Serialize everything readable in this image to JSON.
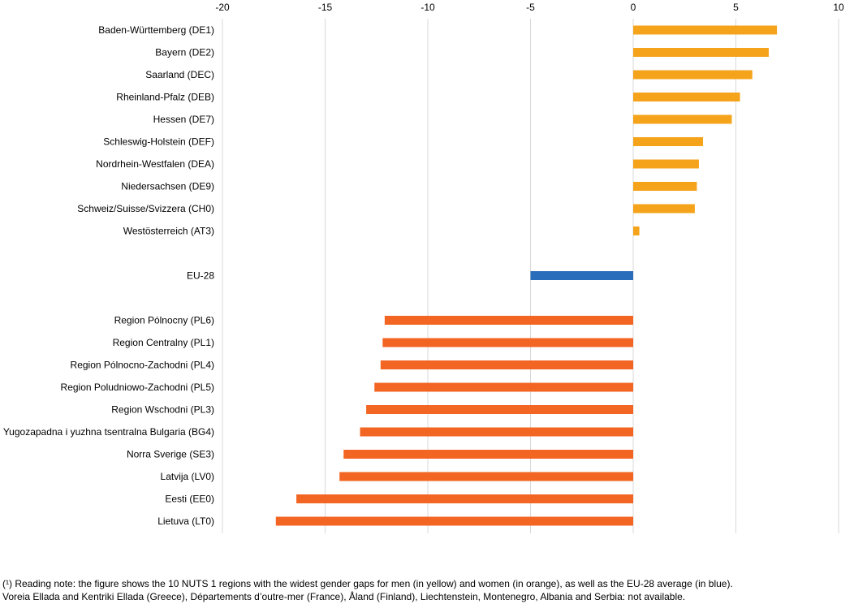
{
  "chart_data": {
    "type": "bar",
    "orientation": "horizontal",
    "xlim": [
      -20,
      10
    ],
    "x_ticks": [
      -20,
      -15,
      -10,
      -5,
      0,
      5,
      10
    ],
    "grid": "vertical",
    "legend": "none",
    "colors": {
      "men": "#f5a31a",
      "eu": "#2a6ebb",
      "women": "#f26522"
    },
    "categories": [
      "Baden-Württemberg (DE1)",
      "Bayern (DE2)",
      "Saarland (DEC)",
      "Rheinland-Pfalz (DEB)",
      "Hessen (DE7)",
      "Schleswig-Holstein (DEF)",
      "Nordrhein-Westfalen (DEA)",
      "Niedersachsen (DE9)",
      "Schweiz/Suisse/Svizzera (CH0)",
      "Westösterreich (AT3)",
      "",
      "EU-28",
      "",
      "Region Pólnocny (PL6)",
      "Region Centralny (PL1)",
      "Region Pólnocno-Zachodni (PL4)",
      "Region Poludniowo-Zachodni (PL5)",
      "Region Wschodni (PL3)",
      "Yugozapadna i yuzhna tsentralna Bulgaria (BG4)",
      "Norra Sverige (SE3)",
      "Latvija (LV0)",
      "Eesti (EE0)",
      "Lietuva (LT0)"
    ],
    "values": [
      7.0,
      6.6,
      5.8,
      5.2,
      4.8,
      3.4,
      3.2,
      3.1,
      3.0,
      0.3,
      null,
      -5.0,
      null,
      -12.1,
      -12.2,
      -12.3,
      -12.6,
      -13.0,
      -13.3,
      -14.1,
      -14.3,
      -16.4,
      -17.4
    ],
    "groups": [
      "men",
      "men",
      "men",
      "men",
      "men",
      "men",
      "men",
      "men",
      "men",
      "men",
      null,
      "eu",
      null,
      "women",
      "women",
      "women",
      "women",
      "women",
      "women",
      "women",
      "women",
      "women",
      "women"
    ]
  },
  "notes": [
    "(¹) Reading note: the figure shows the 10 NUTS 1 regions with the widest gender gaps for men (in yellow) and women (in orange), as well as the EU-28 average (in blue).",
    "Voreia Ellada and Kentriki Ellada (Greece), Départements d’outre-mer (France), Åland (Finland), Liechtenstein, Montenegro, Albania and Serbia: not available."
  ]
}
